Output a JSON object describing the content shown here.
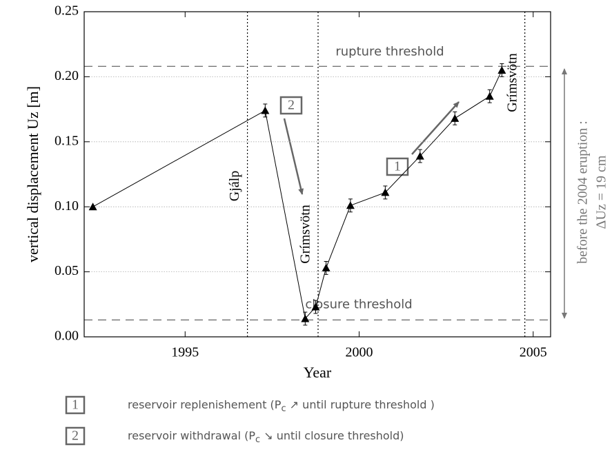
{
  "chart_data": {
    "type": "line",
    "xlabel": "Year",
    "ylabel": "vertical displacement Uz  [m]",
    "xlim": [
      1992.1,
      2005.5
    ],
    "ylim": [
      0,
      0.25
    ],
    "xticks": [
      1995,
      2000,
      2005
    ],
    "yticks": [
      {
        "value": 0,
        "label": "0.00"
      },
      {
        "value": 0.05,
        "label": "0.05"
      },
      {
        "value": 0.1,
        "label": "0.10"
      },
      {
        "value": 0.15,
        "label": "0.15"
      },
      {
        "value": 0.2,
        "label": "0.20"
      },
      {
        "value": 0.25,
        "label": "0.25"
      }
    ],
    "grid": true,
    "series": [
      {
        "color": "#000000",
        "x": [
          1992.35,
          1997.3,
          1998.45,
          1998.75,
          1999.05,
          1999.75,
          2000.75,
          2001.75,
          2002.75,
          2003.75,
          2004.1
        ],
        "values": [
          0.1,
          0.174,
          0.014,
          0.023,
          0.053,
          0.101,
          0.111,
          0.139,
          0.168,
          0.185,
          0.205
        ],
        "errors": [
          0,
          0.005,
          0.005,
          0.005,
          0.005,
          0.005,
          0.005,
          0.005,
          0.005,
          0.005,
          0.005
        ]
      }
    ],
    "events": [
      {
        "label": "Gjálp",
        "x": 1996.79
      },
      {
        "label": "Grímsvötn",
        "x": 1998.82
      },
      {
        "label": "Grímsvötn",
        "x": 2004.76
      }
    ],
    "thresholds": [
      {
        "label": "rupture threshold",
        "value": 0.208
      },
      {
        "label": "closure threshold",
        "value": 0.013
      }
    ],
    "annotations": {
      "box1": "1",
      "box2": "2",
      "side_line1": "before the 2004 eruption :",
      "side_line2": "ΔUz = 19 cm"
    },
    "legend": [
      {
        "key": "1",
        "prefix": "reservoir replenishement (P",
        "sub": "c",
        "suffix": " ↗  until rupture threshold )"
      },
      {
        "key": "2",
        "prefix": "reservoir withdrawal (P",
        "sub": "c",
        "suffix": " ↘  until closure threshold)"
      }
    ]
  }
}
